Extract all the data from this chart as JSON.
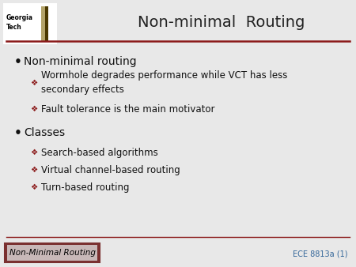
{
  "title": "Non-minimal  Routing",
  "bg_color": "#e8e8e8",
  "title_color": "#222222",
  "title_fontsize": 14,
  "header_line_color": "#8B1A1A",
  "bullet1": "Non-minimal routing",
  "sub1a": "Wormhole degrades performance while VCT has less\nsecondary effects",
  "sub1b": "Fault tolerance is the main motivator",
  "bullet2": "Classes",
  "sub2a": "Search-based algorithms",
  "sub2b": "Virtual channel-based routing",
  "sub2c": "Turn-based routing",
  "bullet_color": "#111111",
  "sub_color": "#111111",
  "diamond_color": "#8B1A1A",
  "footer_text": "Non-Minimal Routing",
  "footer_box_dark": "#7a3030",
  "footer_box_inner": "#c8b8b8",
  "page_label": "ECE 8813a (1)",
  "page_label_color": "#336699",
  "bullet_fontsize": 10,
  "sub_fontsize": 8.5,
  "footer_fontsize": 7.5,
  "gt_gold": "#B3A369",
  "gt_dark": "#4a3800",
  "gt_navy": "#003057"
}
